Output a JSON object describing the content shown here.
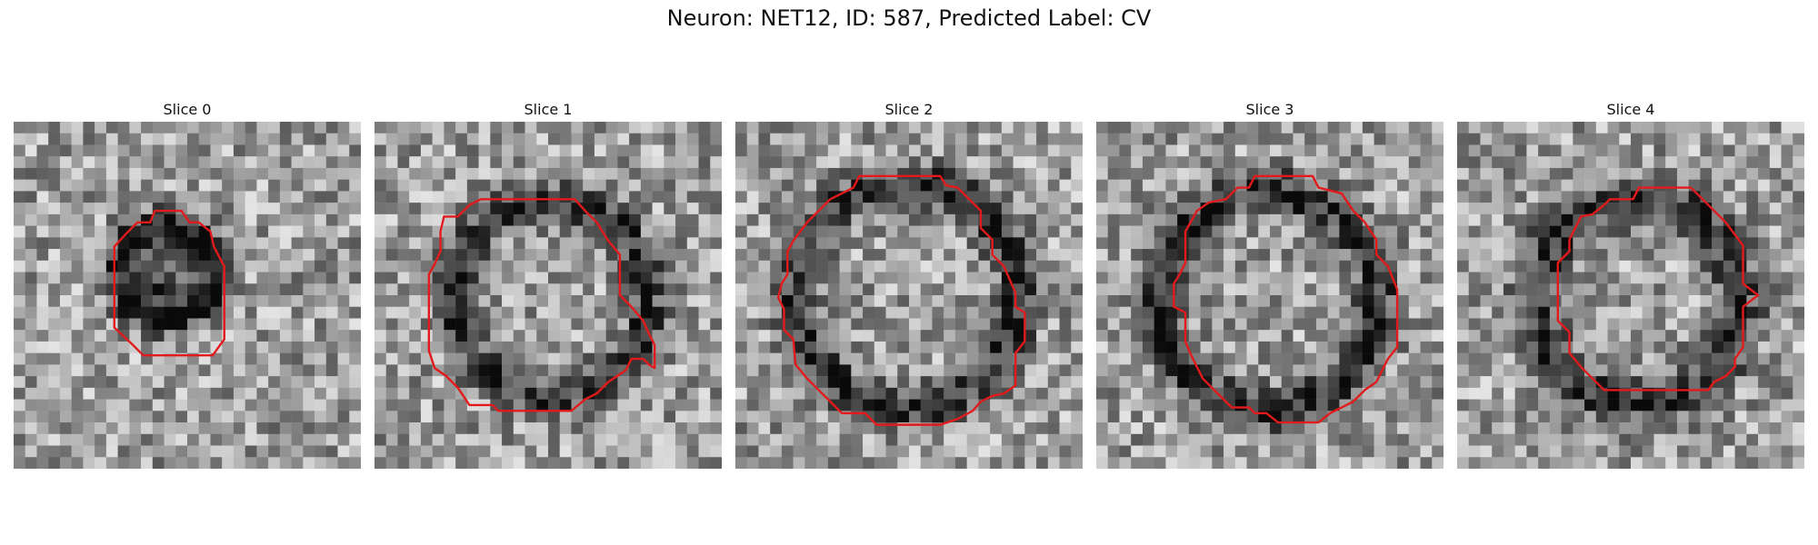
{
  "figure": {
    "title": "Neuron: NET12, ID: 587, Predicted Label: CV"
  },
  "colors": {
    "outline": "#e31a1c",
    "background": "#ffffff"
  },
  "slices": [
    {
      "title": "Slice 0"
    },
    {
      "title": "Slice 1"
    },
    {
      "title": "Slice 2"
    },
    {
      "title": "Slice 3"
    },
    {
      "title": "Slice 4"
    }
  ]
}
